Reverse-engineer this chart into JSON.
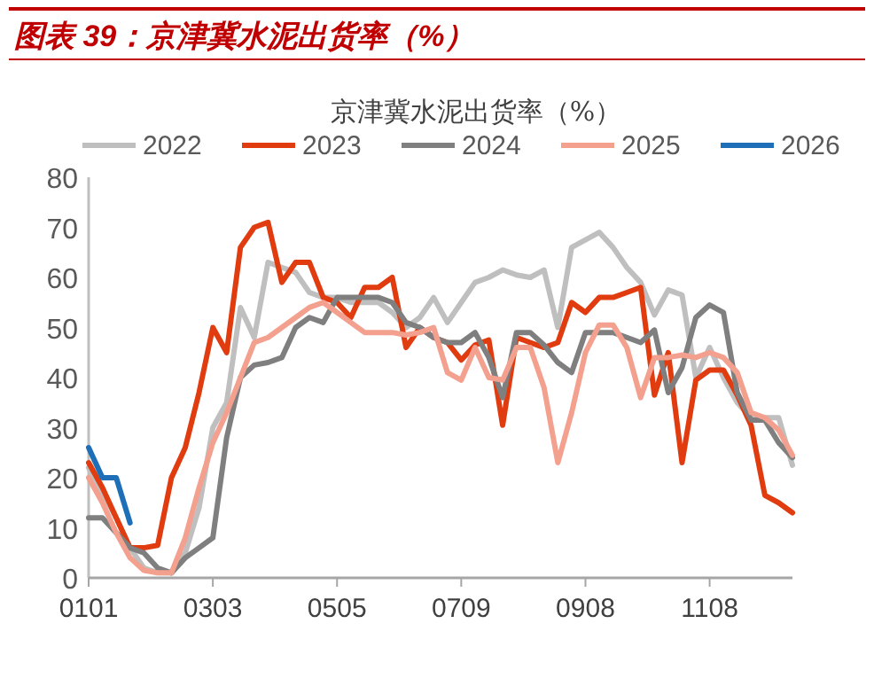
{
  "chart_data": {
    "type": "line",
    "title": "图表 39：京津冀水泥出货率（%）",
    "subtitle": "京津冀水泥出货率（%）",
    "categories": [
      "0101",
      null,
      null,
      null,
      null,
      null,
      null,
      null,
      null,
      "0303",
      null,
      null,
      null,
      null,
      null,
      null,
      null,
      null,
      "0505",
      null,
      null,
      null,
      null,
      null,
      null,
      null,
      null,
      "0709",
      null,
      null,
      null,
      null,
      null,
      null,
      null,
      null,
      "0908",
      null,
      null,
      null,
      null,
      null,
      null,
      null,
      null,
      "1108",
      null,
      null,
      null,
      null,
      null,
      null
    ],
    "ylim": [
      0,
      80
    ],
    "yticks": [
      0,
      10,
      20,
      30,
      40,
      50,
      60,
      70,
      80
    ],
    "grid": false,
    "legend": "top",
    "marker": "none",
    "line_style": "solid",
    "series": [
      {
        "name": "2022",
        "color": "#bfbfbf",
        "values": [
          22,
          17,
          12,
          6,
          2,
          1,
          1,
          5,
          14,
          30,
          35,
          54,
          48,
          63,
          62,
          61,
          57,
          56,
          56,
          55,
          55,
          55,
          53,
          50,
          52,
          56,
          51,
          55,
          59,
          60,
          61.5,
          60.5,
          60,
          61.5,
          50,
          66,
          67.5,
          69,
          66,
          62,
          59,
          52.5,
          57.5,
          56.5,
          40,
          46,
          40,
          35,
          32,
          32,
          32,
          22.5
        ]
      },
      {
        "name": "2023",
        "color": "#e03c10",
        "values": [
          23,
          18,
          12,
          6,
          6,
          6.5,
          20,
          26,
          37,
          50,
          45,
          66,
          70,
          71,
          59,
          63,
          63,
          56,
          55,
          52,
          58,
          58,
          60,
          46,
          50,
          48,
          47,
          43.5,
          46.5,
          47.5,
          30.5,
          48,
          47,
          46,
          47,
          55,
          53,
          56,
          56,
          57,
          58,
          36.5,
          45,
          23,
          39.5,
          41.5,
          41.5,
          36.5,
          30.5,
          16.5,
          15,
          13
        ]
      },
      {
        "name": "2024",
        "color": "#7f7f7f",
        "values": [
          12,
          12,
          9,
          6,
          5,
          2,
          1,
          4,
          6,
          8,
          28,
          40,
          42.5,
          43,
          44,
          50,
          52,
          51,
          56,
          56,
          56,
          56,
          55,
          51,
          50,
          48,
          47,
          47,
          49,
          44,
          36,
          49,
          49,
          46.5,
          43,
          41,
          49,
          49,
          49,
          48,
          47,
          49.5,
          37,
          42,
          52,
          54.5,
          53,
          37,
          31.5,
          31.5,
          27,
          24
        ]
      },
      {
        "name": "2025",
        "color": "#f4a08f",
        "values": [
          20,
          15,
          9,
          4,
          1.5,
          1,
          1,
          8,
          18,
          27,
          33,
          40,
          47,
          48,
          50,
          52,
          54,
          55,
          53,
          51,
          49,
          49,
          49,
          48.5,
          49,
          50,
          41,
          39.5,
          46,
          40,
          39.5,
          46,
          46,
          38,
          23,
          33,
          45,
          50.5,
          50.5,
          46,
          36,
          44,
          44,
          44.5,
          44,
          45,
          44,
          41,
          33,
          32,
          29.5,
          24.5
        ]
      },
      {
        "name": "2026",
        "color": "#1f6fb8",
        "values": [
          26,
          20,
          20,
          11,
          null,
          null,
          null,
          null,
          null,
          null,
          null,
          null,
          null,
          null,
          null,
          null,
          null,
          null,
          null,
          null,
          null,
          null,
          null,
          null,
          null,
          null,
          null,
          null,
          null,
          null,
          null,
          null,
          null,
          null,
          null,
          null,
          null,
          null,
          null,
          null,
          null,
          null,
          null,
          null,
          null,
          null,
          null,
          null,
          null,
          null,
          null,
          null
        ]
      }
    ]
  }
}
